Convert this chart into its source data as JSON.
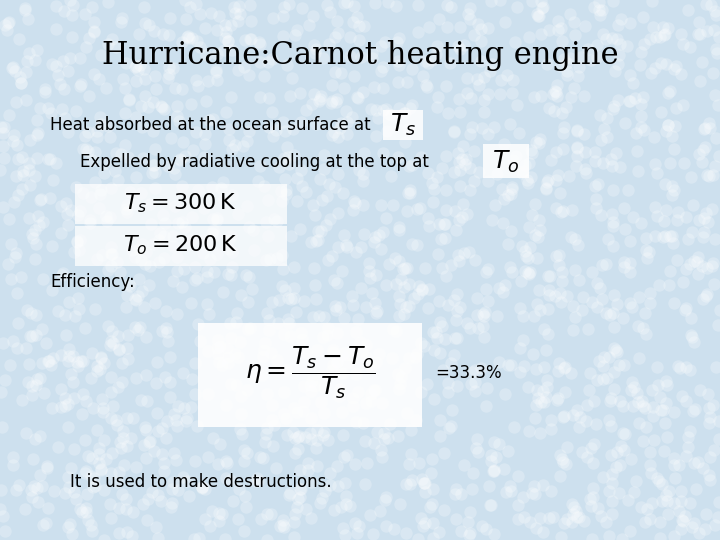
{
  "title": "Hurricane:Carnot heating engine",
  "title_fontsize": 22,
  "background_color": "#cde0ee",
  "text_color": "#000000",
  "line1_text": "Heat absorbed at the ocean surface at",
  "line1_math": "$T_s$",
  "line2_text": "Expelled by radiative cooling at the top at",
  "line2_math": "$T_o$",
  "eq1": "$T_s = 300\\,\\mathrm{K}$",
  "eq2": "$T_o = 200\\,\\mathrm{K}$",
  "efficiency_label": "Efficiency:",
  "efficiency_formula": "$\\eta = \\dfrac{T_s - T_o}{T_s}$",
  "efficiency_result": "=33.3%",
  "footer": "It is used to make destructions.",
  "body_fontsize": 12,
  "eq_fontsize": 16,
  "math_inline_fontsize": 18,
  "efficiency_formula_fontsize": 18
}
